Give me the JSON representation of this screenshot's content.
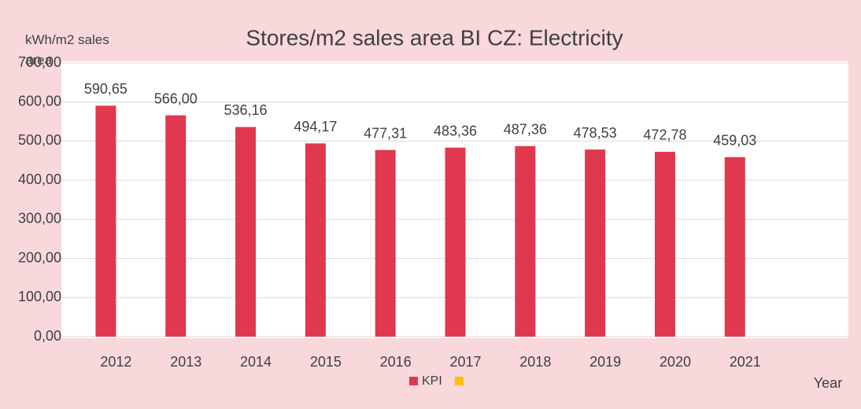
{
  "chart_data": {
    "type": "bar",
    "title": "Stores/m2 sales area BI CZ: Electricity",
    "y_label": "kWh/m2 sales area",
    "x_label": "Year",
    "categories": [
      "2012",
      "2013",
      "2014",
      "2015",
      "2016",
      "2017",
      "2018",
      "2019",
      "2020",
      "2021",
      null
    ],
    "series": [
      {
        "name": "KPI",
        "color": "#e0384e",
        "values": [
          590.65,
          566.0,
          536.16,
          494.17,
          477.31,
          483.36,
          487.36,
          478.53,
          472.78,
          459.03,
          null
        ],
        "value_labels": [
          "590,65",
          "566,00",
          "536,16",
          "494,17",
          "477,31",
          "483,36",
          "487,36",
          "478,53",
          "472,78",
          "459,03",
          null
        ]
      },
      {
        "color": "#ffc000",
        "values": [
          null,
          null,
          null,
          null,
          null,
          null,
          null,
          null,
          null,
          null,
          null
        ]
      }
    ],
    "ylim": [
      0,
      700
    ],
    "yticks": [
      {
        "value": 0,
        "label": "0,00"
      },
      {
        "value": 100,
        "label": "100,00"
      },
      {
        "value": 200,
        "label": "200,00"
      },
      {
        "value": 300,
        "label": "300,00"
      },
      {
        "value": 400,
        "label": "400,00"
      },
      {
        "value": 500,
        "label": "500,00"
      },
      {
        "value": 600,
        "label": "600,00"
      },
      {
        "value": 700,
        "label": "700,00"
      }
    ],
    "grid": true
  }
}
